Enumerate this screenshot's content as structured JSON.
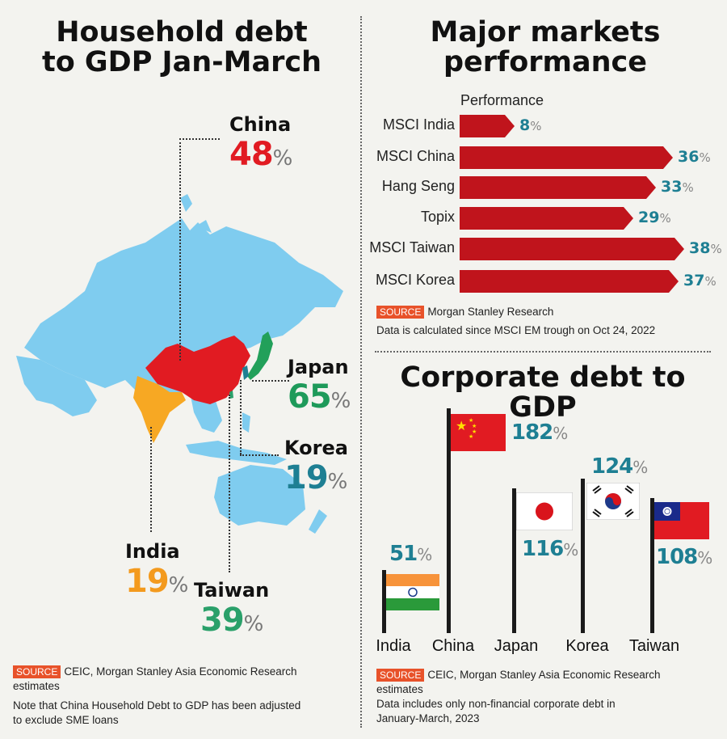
{
  "household": {
    "title_line1": "Household debt",
    "title_line2": "to GDP Jan-March",
    "unit": "%",
    "items": [
      {
        "name": "China",
        "value": "48",
        "color": "#e11b22"
      },
      {
        "name": "Japan",
        "value": "65",
        "color": "#1e9a5a"
      },
      {
        "name": "Korea",
        "value": "19",
        "color": "#1e7f93"
      },
      {
        "name": "India",
        "value": "19",
        "color": "#f39a1e"
      },
      {
        "name": "Taiwan",
        "value": "39",
        "color": "#2aa06a"
      }
    ],
    "source_badge": "SOURCE",
    "source_text": "CEIC, Morgan Stanley Asia Economic Research",
    "source_text2": "estimates",
    "note_line1": "Note that China Household Debt to GDP has been adjusted",
    "note_line2": "to exclude SME loans"
  },
  "markets": {
    "title_line1": "Major markets",
    "title_line2": "performance",
    "axis_title": "Performance",
    "unit": "%",
    "source_badge": "SOURCE",
    "source_text": "Morgan Stanley Research",
    "note": "Data is calculated since MSCI EM trough on Oct 24, 2022"
  },
  "corporate": {
    "title": "Corporate debt to GDP",
    "unit": "%",
    "source_badge": "SOURCE",
    "source_text": "CEIC, Morgan Stanley Asia Economic Research",
    "source_text2": "estimates",
    "note_line1": "Data includes only non-financial corporate debt in",
    "note_line2": "January-March, 2023"
  },
  "chart_data": [
    {
      "type": "bar",
      "title": "Household debt to GDP Jan-March",
      "categories": [
        "China",
        "Japan",
        "Korea",
        "India",
        "Taiwan"
      ],
      "values": [
        48,
        65,
        19,
        19,
        39
      ],
      "unit": "%"
    },
    {
      "type": "bar",
      "title": "Major markets performance",
      "xlabel": "Performance",
      "categories": [
        "MSCI India",
        "MSCI China",
        "Hang Seng",
        "Topix",
        "MSCI Taiwan",
        "MSCI Korea"
      ],
      "values": [
        8,
        36,
        33,
        29,
        38,
        37
      ],
      "unit": "%",
      "bar_color": "#c0141c"
    },
    {
      "type": "bar",
      "title": "Corporate debt to GDP",
      "categories": [
        "India",
        "China",
        "Japan",
        "Korea",
        "Taiwan"
      ],
      "values": [
        51,
        182,
        116,
        124,
        108
      ],
      "unit": "%"
    }
  ]
}
